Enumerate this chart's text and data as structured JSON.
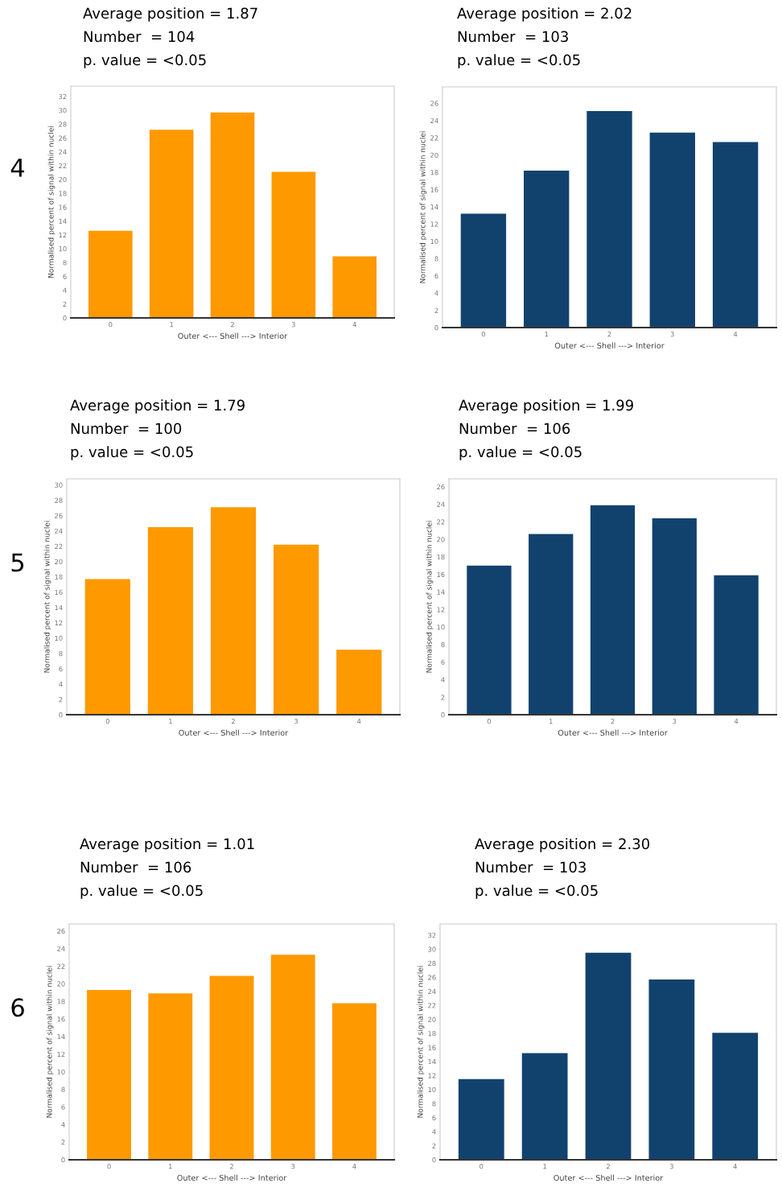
{
  "chart_data": [
    {
      "type": "bar",
      "title": "Average position = 1.87",
      "subtitle": "Number  = 104\np. value = <0.05",
      "annotations": [
        "4"
      ],
      "xlabel": "Outer <--- Shell ---> Interior",
      "ylabel": "Normalised percent of signal within nuclei",
      "categories": [
        "0",
        "1",
        "2",
        "3",
        "4"
      ],
      "values": [
        12.6,
        27.2,
        29.7,
        21.1,
        8.9
      ],
      "color": "#ff9900",
      "ylim": [
        0,
        33.5
      ],
      "yticks": [
        0,
        2,
        4,
        6,
        8,
        10,
        12,
        14,
        16,
        18,
        20,
        22,
        24,
        26,
        28,
        30,
        32
      ],
      "grid": false
    },
    {
      "type": "bar",
      "title": "Average position = 2.02",
      "subtitle": "Number  = 103\np. value = <0.05",
      "xlabel": "Outer <--- Shell ---> Interior",
      "ylabel": "Normalised percent of signal within nuclei",
      "categories": [
        "0",
        "1",
        "2",
        "3",
        "4"
      ],
      "values": [
        13.2,
        18.2,
        25.1,
        22.6,
        21.5
      ],
      "color": "#11426e",
      "ylim": [
        0,
        27.9
      ],
      "yticks": [
        0,
        2,
        4,
        6,
        8,
        10,
        12,
        14,
        16,
        18,
        20,
        22,
        24,
        26
      ],
      "grid": false
    },
    {
      "type": "bar",
      "title": "Average position = 1.79",
      "subtitle": "Number  = 100\np. value = <0.05",
      "annotations": [
        "5"
      ],
      "xlabel": "Outer <--- Shell ---> Interior",
      "ylabel": "Normalised percent of signal within nuclei",
      "categories": [
        "0",
        "1",
        "2",
        "3",
        "4"
      ],
      "values": [
        17.7,
        24.5,
        27.1,
        22.2,
        8.5
      ],
      "color": "#ff9900",
      "ylim": [
        0,
        30.8
      ],
      "yticks": [
        0,
        2,
        4,
        6,
        8,
        10,
        12,
        14,
        16,
        18,
        20,
        22,
        24,
        26,
        28,
        30
      ],
      "grid": false
    },
    {
      "type": "bar",
      "title": "Average position = 1.99",
      "subtitle": "Number  = 106\np. value = <0.05",
      "xlabel": "Outer <--- Shell ---> Interior",
      "ylabel": "Normalised percent of signal within nuclei",
      "categories": [
        "0",
        "1",
        "2",
        "3",
        "4"
      ],
      "values": [
        17.0,
        20.6,
        23.9,
        22.4,
        15.9
      ],
      "color": "#11426e",
      "ylim": [
        0,
        26.9
      ],
      "yticks": [
        0,
        2,
        4,
        6,
        8,
        10,
        12,
        14,
        16,
        18,
        20,
        22,
        24,
        26
      ],
      "grid": false
    },
    {
      "type": "bar",
      "title": "Average position = 1.01",
      "subtitle": "Number  = 106\np. value = <0.05",
      "annotations": [
        "6"
      ],
      "xlabel": "Outer <--- Shell ---> Interior",
      "ylabel": "Normalised percent of signal within nuclei",
      "categories": [
        "0",
        "1",
        "2",
        "3",
        "4"
      ],
      "values": [
        19.3,
        18.9,
        20.9,
        23.3,
        17.8
      ],
      "color": "#ff9900",
      "ylim": [
        0,
        26.8
      ],
      "yticks": [
        0,
        2,
        4,
        6,
        8,
        10,
        12,
        14,
        16,
        18,
        20,
        22,
        24,
        26
      ],
      "grid": false
    },
    {
      "type": "bar",
      "title": "Average position = 2.30",
      "subtitle": "Number  = 103\np. value = <0.05",
      "xlabel": "Outer <--- Shell ---> Interior",
      "ylabel": "Normalised percent of signal within nuclei",
      "categories": [
        "0",
        "1",
        "2",
        "3",
        "4"
      ],
      "values": [
        11.5,
        15.2,
        29.5,
        25.7,
        18.1
      ],
      "color": "#11426e",
      "ylim": [
        0,
        33.6
      ],
      "yticks": [
        0,
        2,
        4,
        6,
        8,
        10,
        12,
        14,
        16,
        18,
        20,
        22,
        24,
        26,
        28,
        30,
        32
      ],
      "grid": false
    }
  ]
}
